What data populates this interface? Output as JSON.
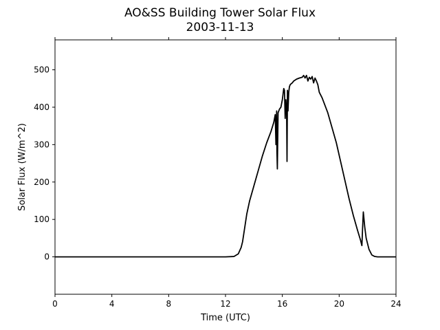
{
  "chart_data": {
    "type": "line",
    "title": "AO&SS Building Tower Solar Flux",
    "subtitle": "2003-11-13",
    "xlabel": "Time (UTC)",
    "ylabel": "Solar Flux (W/m^2)",
    "xlim": [
      0,
      24
    ],
    "ylim": [
      -100,
      580
    ],
    "xticks": [
      0,
      4,
      8,
      12,
      16,
      20,
      24
    ],
    "yticks": [
      0,
      100,
      200,
      300,
      400,
      500
    ],
    "grid": false,
    "legend": "none",
    "line_color": "#000000",
    "series": [
      {
        "x": [
          0,
          2,
          4,
          6,
          8,
          10,
          12,
          12.6,
          12.9,
          13.1,
          13.2,
          13.3,
          13.5,
          13.7,
          14.0,
          14.3,
          14.6,
          14.9,
          15.2,
          15.4,
          15.5,
          15.55,
          15.6,
          15.62,
          15.65,
          15.7,
          15.8,
          15.9,
          16.0,
          16.1,
          16.15,
          16.2,
          16.25,
          16.3,
          16.33,
          16.36,
          16.4,
          16.45,
          16.5,
          16.55,
          16.6,
          16.7,
          16.8,
          17.0,
          17.2,
          17.4,
          17.5,
          17.6,
          17.7,
          17.8,
          17.9,
          18.0,
          18.1,
          18.2,
          18.3,
          18.4,
          18.5,
          18.6,
          18.8,
          19.0,
          19.2,
          19.5,
          19.8,
          20.1,
          20.4,
          20.7,
          21.0,
          21.3,
          21.5,
          21.6,
          21.65,
          21.7,
          21.75,
          21.8,
          21.9,
          22.1,
          22.3,
          22.5,
          22.7,
          23.0,
          24.0
        ],
        "y": [
          0,
          0,
          0,
          0,
          0,
          0,
          0,
          1,
          8,
          25,
          40,
          65,
          115,
          150,
          190,
          230,
          270,
          305,
          335,
          360,
          380,
          300,
          390,
          280,
          235,
          385,
          395,
          400,
          420,
          450,
          445,
          370,
          420,
          390,
          255,
          445,
          390,
          440,
          455,
          460,
          462,
          465,
          470,
          475,
          478,
          480,
          485,
          478,
          485,
          470,
          480,
          475,
          482,
          465,
          478,
          470,
          460,
          440,
          425,
          405,
          385,
          345,
          305,
          255,
          205,
          155,
          110,
          70,
          45,
          30,
          78,
          120,
          100,
          80,
          50,
          20,
          5,
          1,
          0,
          0,
          0
        ]
      }
    ]
  }
}
